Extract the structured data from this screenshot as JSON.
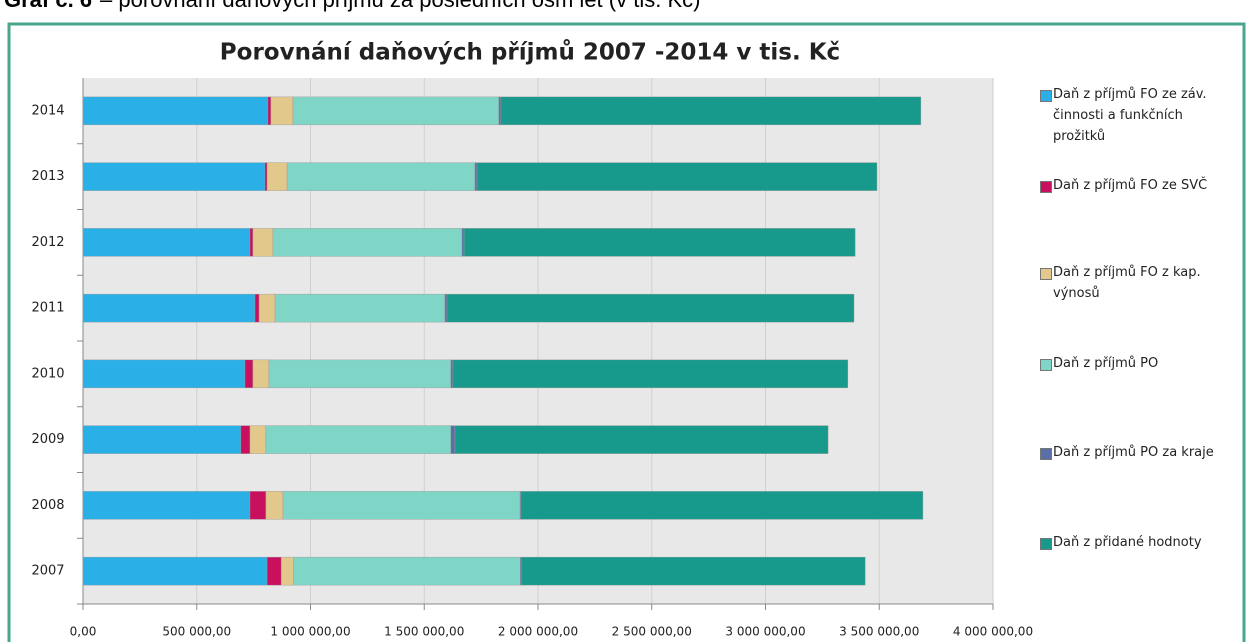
{
  "caption_label": "Graf č. 6",
  "caption": "– porovnání daňových příjmů za posledních osm let (v tis. Kč)",
  "chart_data": {
    "type": "stacked_bar_horizontal",
    "title": "Porovnání daňových příjmů 2007 -2014 v tis. Kč",
    "categories": [
      "2007",
      "2008",
      "2009",
      "2010",
      "2011",
      "2012",
      "2013",
      "2014"
    ],
    "series": [
      {
        "name": "Daň z příjmů FO ze záv. činnosti a funkčních prožitků",
        "color": "#2ab0e6",
        "values": [
          809000,
          734000,
          694000,
          712000,
          756000,
          734000,
          800000,
          813000
        ]
      },
      {
        "name": "Daň z příjmů FO ze SVČ",
        "color": "#c8105f",
        "values": [
          62000,
          70000,
          40000,
          35000,
          18000,
          13000,
          9000,
          13000
        ]
      },
      {
        "name": "Daň z příjmů FO z kap. výnosů",
        "color": "#e3c88c",
        "values": [
          53000,
          75000,
          70000,
          70000,
          70000,
          88000,
          88000,
          97000
        ]
      },
      {
        "name": "Daň z příjmů PO",
        "color": "#7fd6c6",
        "values": [
          998000,
          1042000,
          813000,
          800000,
          747000,
          831000,
          826000,
          905000
        ]
      },
      {
        "name": "Daň z příjmů PO za kraje",
        "color": "#5a6ea8",
        "values": [
          4000,
          4000,
          18000,
          9000,
          9000,
          9000,
          9000,
          9000
        ]
      },
      {
        "name": "Daň z přidané hodnoty",
        "color": "#179a8b",
        "values": [
          1512000,
          1767000,
          1640000,
          1736000,
          1789000,
          1719000,
          1758000,
          1846000
        ]
      }
    ],
    "xlim": [
      0,
      4000000
    ],
    "xticks": [
      {
        "value": 0,
        "label": "0,00"
      },
      {
        "value": 500000,
        "label": "500 000,00"
      },
      {
        "value": 1000000,
        "label": "1 000 000,00"
      },
      {
        "value": 1500000,
        "label": "1 500 000,00"
      },
      {
        "value": 2000000,
        "label": "2 000 000,00"
      },
      {
        "value": 2500000,
        "label": "2 500 000,00"
      },
      {
        "value": 3000000,
        "label": "3 000 000,00"
      },
      {
        "value": 3500000,
        "label": "3 500 000,00"
      },
      {
        "value": 4000000,
        "label": "4 000 000,00"
      }
    ],
    "grid": true,
    "legend": "right"
  }
}
